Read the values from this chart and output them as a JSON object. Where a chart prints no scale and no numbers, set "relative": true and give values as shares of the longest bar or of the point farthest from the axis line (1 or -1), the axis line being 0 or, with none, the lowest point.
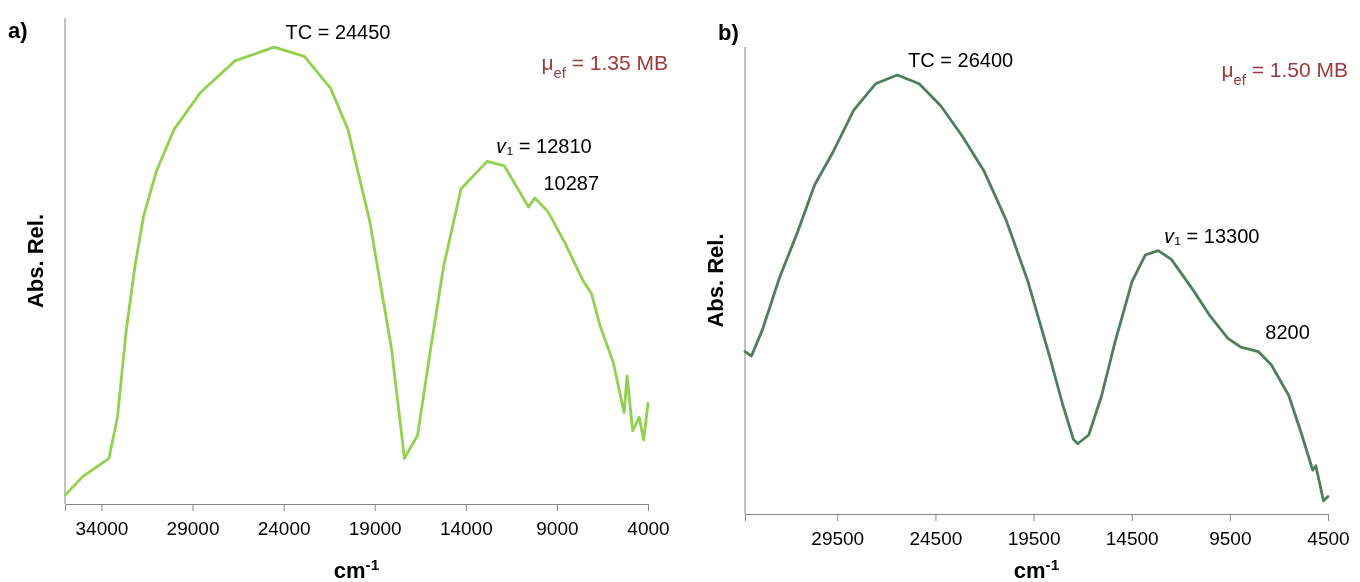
{
  "chart_data": [
    {
      "type": "line",
      "title": "a)",
      "xlabel": "cm$^{-1}$",
      "ylabel": "Abs. Rel.",
      "relative": true,
      "xlim": [
        36000,
        4000
      ],
      "xticks": [
        34000,
        29000,
        24000,
        19000,
        14000,
        9000,
        4000
      ],
      "grid": false,
      "marker": "none",
      "line_style": "solid",
      "series": [
        {
          "color": "#92d050",
          "x": [
            35980,
            35030,
            33590,
            33120,
            32640,
            32160,
            31690,
            30970,
            30010,
            28580,
            26670,
            24530,
            22860,
            21420,
            20470,
            19280,
            18080,
            17370,
            16650,
            15930,
            15220,
            14260,
            12830,
            11880,
            10560,
            10210,
            9490,
            8540,
            7580,
            7100,
            6630,
            5910,
            5310,
            5150,
            4840,
            4480,
            4240,
            4000
          ],
          "values": [
            0.02,
            0.06,
            0.1,
            0.19,
            0.38,
            0.52,
            0.63,
            0.73,
            0.82,
            0.9,
            0.97,
            1,
            0.98,
            0.91,
            0.82,
            0.62,
            0.34,
            0.1,
            0.15,
            0.34,
            0.52,
            0.69,
            0.75,
            0.74,
            0.65,
            0.67,
            0.64,
            0.57,
            0.49,
            0.46,
            0.39,
            0.31,
            0.2,
            0.28,
            0.16,
            0.19,
            0.14,
            0.22
          ]
        }
      ],
      "annotations": [
        {
          "text": "TC = 24450",
          "x": 24450,
          "y": 1
        },
        {
          "text": "𝑣₁ = 12810",
          "x": 12810,
          "y": 0.75
        },
        {
          "text": "10287",
          "x": 10287,
          "y": 0.67
        },
        "μ$_{ef}$ = 1.35 MB"
      ]
    },
    {
      "type": "line",
      "title": "b)",
      "xlabel": "cm$^{-1}$",
      "ylabel": "Abs. Rel.",
      "relative": true,
      "xlim": [
        34200,
        4500
      ],
      "xticks": [
        29500,
        24500,
        19500,
        14500,
        9500,
        4500
      ],
      "grid": false,
      "marker": "none",
      "line_style": "solid",
      "series": [
        {
          "color": "#4e7f5a",
          "x": [
            34200,
            33870,
            33310,
            32430,
            31540,
            30650,
            29770,
            28660,
            27550,
            26440,
            25330,
            24230,
            23120,
            22010,
            20900,
            19790,
            18690,
            18020,
            17470,
            17250,
            16690,
            16030,
            15360,
            14480,
            13810,
            13150,
            12480,
            11370,
            10490,
            9600,
            8940,
            8050,
            7390,
            6500,
            5830,
            5280,
            5120,
            4730,
            4500
          ],
          "values": [
            0.37,
            0.36,
            0.42,
            0.54,
            0.64,
            0.75,
            0.82,
            0.92,
            0.98,
            1,
            0.98,
            0.93,
            0.86,
            0.78,
            0.67,
            0.53,
            0.36,
            0.25,
            0.17,
            0.16,
            0.18,
            0.27,
            0.39,
            0.53,
            0.59,
            0.6,
            0.58,
            0.51,
            0.45,
            0.4,
            0.38,
            0.37,
            0.34,
            0.27,
            0.18,
            0.1,
            0.11,
            0.03,
            0.04
          ]
        }
      ],
      "annotations": [
        {
          "text": "TC = 26400",
          "x": 26400,
          "y": 1
        },
        {
          "text": "𝑣₁ = 13300",
          "x": 13300,
          "y": 0.6
        },
        {
          "text": "8200",
          "x": 8200,
          "y": 0.38
        },
        "μ$_{ef}$ = 1.50 MB"
      ]
    }
  ]
}
